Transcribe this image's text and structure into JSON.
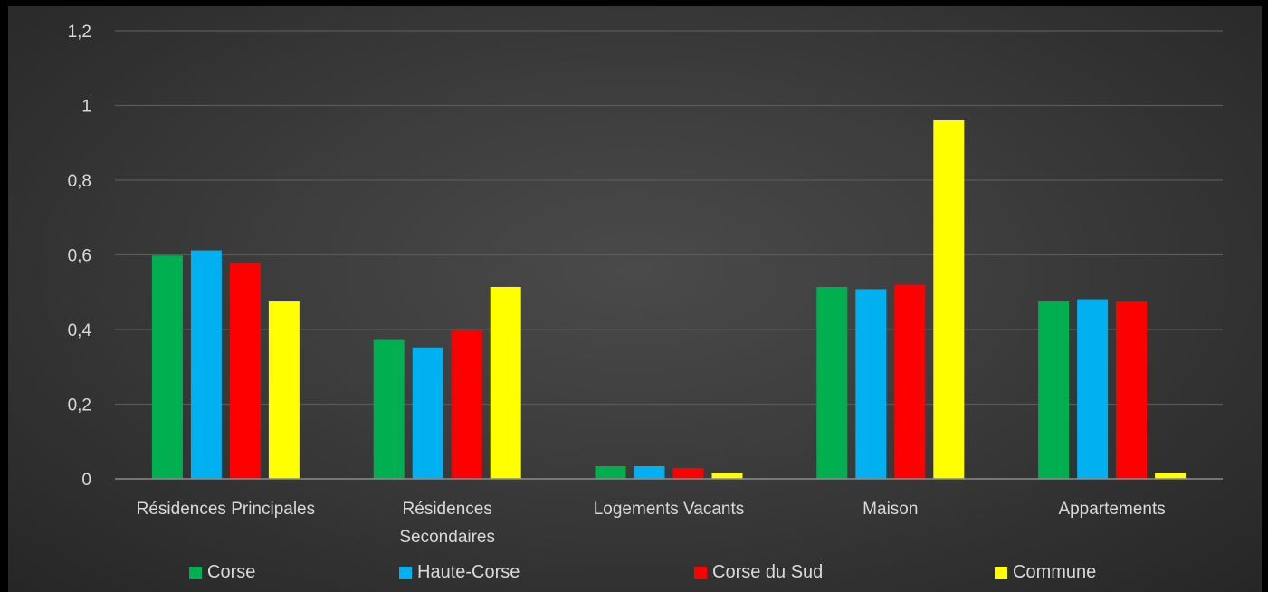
{
  "chart_data": {
    "type": "bar",
    "categories": [
      "Résidences Principales",
      "Résidences Secondaires",
      "Logements Vacants",
      "Maison",
      "Appartements"
    ],
    "category_lines": [
      [
        "Résidences Principales"
      ],
      [
        "Résidences",
        "Secondaires"
      ],
      [
        "Logements Vacants"
      ],
      [
        "Maison"
      ],
      [
        "Appartements"
      ]
    ],
    "series": [
      {
        "name": "Corse",
        "color": "#00b050",
        "values": [
          0.598,
          0.372,
          0.034,
          0.514,
          0.475
        ]
      },
      {
        "name": "Haute-Corse",
        "color": "#00b0f0",
        "values": [
          0.612,
          0.352,
          0.034,
          0.508,
          0.481
        ]
      },
      {
        "name": "Corse du Sud",
        "color": "#ff0000",
        "values": [
          0.578,
          0.398,
          0.029,
          0.52,
          0.475
        ]
      },
      {
        "name": "Commune",
        "color": "#ffff00",
        "values": [
          0.475,
          0.514,
          0.016,
          0.96,
          0.016
        ]
      }
    ],
    "yticks": [
      "0",
      "0,2",
      "0,4",
      "0,6",
      "0,8",
      "1",
      "1,2"
    ],
    "ylim": [
      0,
      1.2
    ],
    "grid": true,
    "legend": "bottom"
  }
}
